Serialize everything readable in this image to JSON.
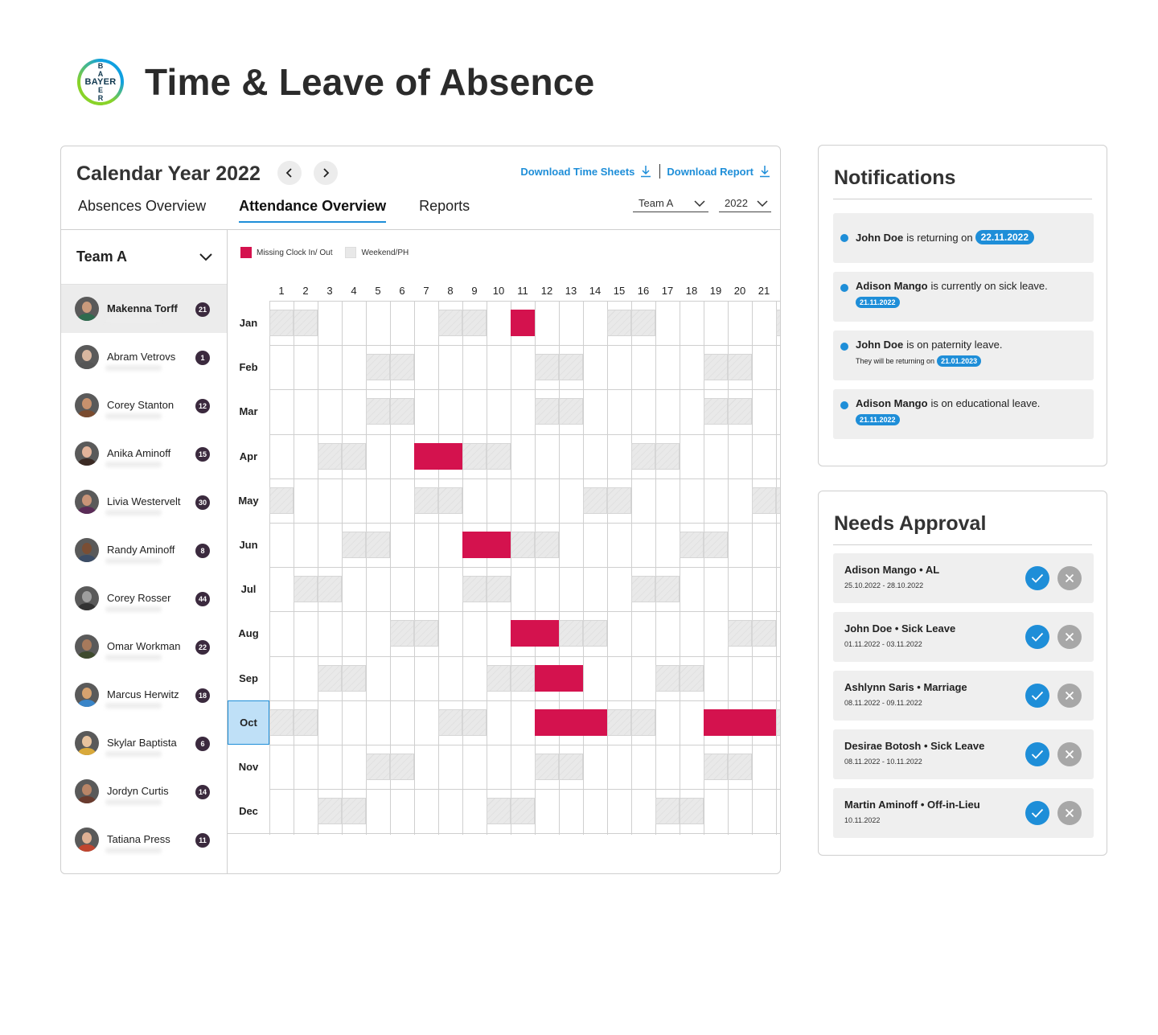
{
  "header": {
    "title": "Time & Leave of Absence",
    "logo_text": "BAYER"
  },
  "calendar": {
    "year_title": "Calendar Year 2022",
    "download_timesheets": "Download Time Sheets",
    "download_report": "Download Report",
    "tabs": [
      "Absences Overview",
      "Attendance Overview",
      "Reports"
    ],
    "active_tab": "Attendance Overview",
    "team_filter": "Team A",
    "year_filter": "2022"
  },
  "team": {
    "label": "Team A",
    "members": [
      {
        "name": "Makenna Torff",
        "count": "21",
        "selected": true,
        "skin": "#c99a7c",
        "shirt": "#2e6b4e"
      },
      {
        "name": "Abram Vetrovs",
        "count": "1",
        "skin": "#d9b7a0",
        "shirt": "#555555"
      },
      {
        "name": "Corey Stanton",
        "count": "12",
        "skin": "#c7916d",
        "shirt": "#7a4b2f"
      },
      {
        "name": "Anika Aminoff",
        "count": "15",
        "skin": "#e2b39a",
        "shirt": "#3b2a24"
      },
      {
        "name": "Livia Westervelt",
        "count": "30",
        "skin": "#c89478",
        "shirt": "#5a2b57"
      },
      {
        "name": "Randy Aminoff",
        "count": "8",
        "skin": "#7a4e34",
        "shirt": "#3c4d66"
      },
      {
        "name": "Corey Rosser",
        "count": "44",
        "skin": "#9e9e9e",
        "shirt": "#333333"
      },
      {
        "name": "Omar Workman",
        "count": "22",
        "skin": "#a77a5c",
        "shirt": "#3e4a2e"
      },
      {
        "name": "Marcus Herwitz",
        "count": "18",
        "skin": "#d6a26f",
        "shirt": "#3a85c8"
      },
      {
        "name": "Skylar Baptista",
        "count": "6",
        "skin": "#e8c39e",
        "shirt": "#d9a93a"
      },
      {
        "name": "Jordyn Curtis",
        "count": "14",
        "skin": "#b98567",
        "shirt": "#6a3b2e"
      },
      {
        "name": "Tatiana Press",
        "count": "11",
        "skin": "#e0b194",
        "shirt": "#c0452f"
      }
    ]
  },
  "legend": {
    "missing": "Missing Clock In/ Out",
    "weekend": "Weekend/PH"
  },
  "days": [
    "1",
    "2",
    "3",
    "4",
    "5",
    "6",
    "7",
    "8",
    "9",
    "10",
    "11",
    "12",
    "13",
    "14",
    "15",
    "16",
    "17",
    "18",
    "19",
    "20",
    "21"
  ],
  "months": [
    {
      "label": "Jan",
      "weekend": [
        1,
        2,
        8,
        9,
        15,
        16,
        22
      ],
      "missing": [
        11
      ]
    },
    {
      "label": "Feb",
      "weekend": [
        5,
        6,
        12,
        13,
        19,
        20
      ],
      "missing": []
    },
    {
      "label": "Mar",
      "weekend": [
        5,
        6,
        12,
        13,
        19,
        20
      ],
      "missing": []
    },
    {
      "label": "Apr",
      "weekend": [
        3,
        4,
        9,
        10,
        16,
        17
      ],
      "missing": [
        7,
        8
      ]
    },
    {
      "label": "May",
      "weekend": [
        1,
        7,
        8,
        14,
        15,
        21,
        22
      ],
      "missing": []
    },
    {
      "label": "Jun",
      "weekend": [
        4,
        5,
        11,
        12,
        18,
        19
      ],
      "missing": [
        9,
        10
      ]
    },
    {
      "label": "Jul",
      "weekend": [
        2,
        3,
        9,
        10,
        16,
        17
      ],
      "missing": []
    },
    {
      "label": "Aug",
      "weekend": [
        6,
        7,
        13,
        14,
        20,
        21
      ],
      "missing": [
        11,
        12
      ]
    },
    {
      "label": "Sep",
      "weekend": [
        3,
        4,
        10,
        11,
        17,
        18
      ],
      "missing": [
        12,
        13
      ]
    },
    {
      "label": "Oct",
      "weekend": [
        1,
        2,
        8,
        9,
        15,
        16,
        22
      ],
      "missing": [
        12,
        13,
        14,
        19,
        20,
        21
      ],
      "active": true
    },
    {
      "label": "Nov",
      "weekend": [
        5,
        6,
        12,
        13,
        19,
        20
      ],
      "missing": []
    },
    {
      "label": "Dec",
      "weekend": [
        3,
        4,
        10,
        11,
        17,
        18
      ],
      "missing": []
    }
  ],
  "notifications": {
    "title": "Notifications",
    "items": [
      {
        "name": "John Doe",
        "text": "is returning on",
        "date": "22.11.2022"
      },
      {
        "name": "Adison Mango",
        "text": "is currently on sick leave.",
        "date": "21.11.2022"
      },
      {
        "name": "John Doe",
        "text": "is on paternity leave.",
        "sub": "They will be returning on",
        "date": "21.01.2023"
      },
      {
        "name": "Adison Mango",
        "text": "is on educational leave.",
        "date": "21.11.2022"
      }
    ]
  },
  "approvals": {
    "title": "Needs Approval",
    "items": [
      {
        "title": "Adison Mango • AL",
        "dates": "25.10.2022 - 28.10.2022"
      },
      {
        "title": "John Doe • Sick Leave",
        "dates": "01.11.2022 - 03.11.2022"
      },
      {
        "title": "Ashlynn Saris • Marriage",
        "dates": "08.11.2022 - 09.11.2022"
      },
      {
        "title": "Desirae Botosh • Sick Leave",
        "dates": "08.11.2022 - 10.11.2022"
      },
      {
        "title": "Martin Aminoff • Off-in-Lieu",
        "dates": "10.11.2022"
      }
    ]
  },
  "colors": {
    "accent": "#1e8ed8",
    "missing": "#d4124e",
    "weekend": "#e8e8e8",
    "count_badge": "#3b2a3e"
  }
}
